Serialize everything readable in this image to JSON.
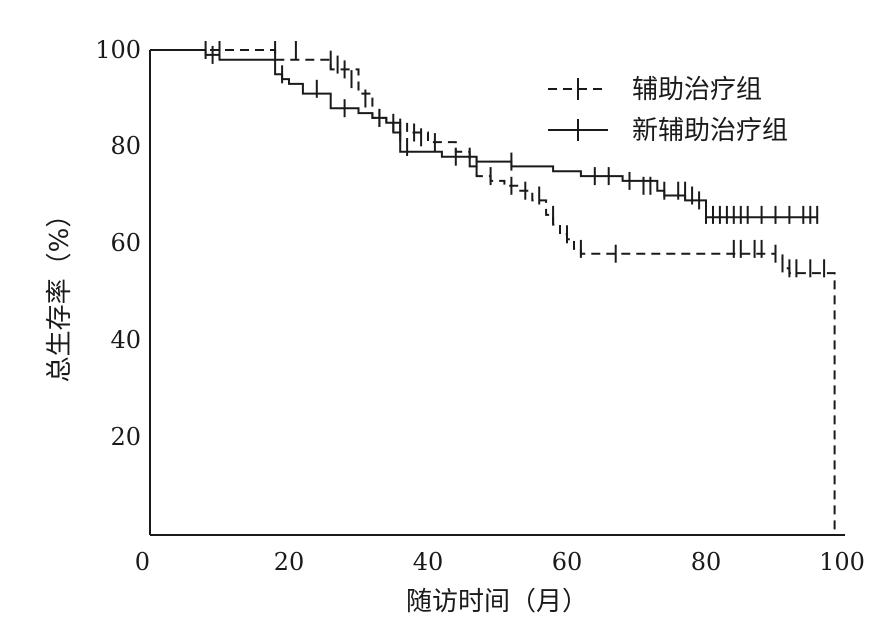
{
  "chart_data": {
    "type": "line",
    "step": true,
    "title": "",
    "xlabel": "随访时间（月）",
    "ylabel": "总生存率（%）",
    "xlim": [
      0,
      100
    ],
    "ylim": [
      0,
      100
    ],
    "xticks": [
      "0",
      "20",
      "40",
      "60",
      "80",
      "100"
    ],
    "yticks": [
      "20",
      "40",
      "60",
      "80",
      "100"
    ],
    "grid": false,
    "legend_position": "top-right",
    "series": [
      {
        "name": "辅助治疗组",
        "style": "dashed",
        "color": "#1a1a1a",
        "steps": [
          [
            0,
            100
          ],
          [
            18,
            98
          ],
          [
            26,
            96
          ],
          [
            30,
            91
          ],
          [
            32,
            86
          ],
          [
            34,
            85
          ],
          [
            37,
            83
          ],
          [
            40,
            81
          ],
          [
            44,
            79
          ],
          [
            46,
            76
          ],
          [
            47,
            74
          ],
          [
            49,
            73
          ],
          [
            51,
            72
          ],
          [
            53,
            71
          ],
          [
            55,
            69
          ],
          [
            57,
            66
          ],
          [
            58,
            64
          ],
          [
            59,
            62
          ],
          [
            60,
            61
          ],
          [
            61,
            59
          ],
          [
            62,
            58
          ],
          [
            84,
            58
          ],
          [
            90,
            57
          ],
          [
            91,
            55
          ],
          [
            92,
            54
          ],
          [
            98,
            54
          ],
          [
            98.5,
            0
          ]
        ],
        "censors": [
          [
            8,
            100
          ],
          [
            10,
            100
          ],
          [
            18,
            100
          ],
          [
            21,
            100
          ],
          [
            26,
            98
          ],
          [
            27,
            97
          ],
          [
            28,
            96
          ],
          [
            29,
            94
          ],
          [
            31,
            90
          ],
          [
            33,
            86
          ],
          [
            35,
            85
          ],
          [
            36,
            84
          ],
          [
            38,
            83
          ],
          [
            39,
            82
          ],
          [
            41,
            81
          ],
          [
            47,
            76
          ],
          [
            49,
            74
          ],
          [
            52,
            72
          ],
          [
            54,
            71
          ],
          [
            56,
            70
          ],
          [
            58,
            66
          ],
          [
            60,
            62
          ],
          [
            62,
            59
          ],
          [
            67,
            58
          ],
          [
            84,
            59
          ],
          [
            85,
            59
          ],
          [
            87,
            59
          ],
          [
            88,
            59
          ],
          [
            90,
            58
          ],
          [
            91,
            56
          ],
          [
            92,
            55
          ],
          [
            93,
            55
          ],
          [
            95,
            55
          ],
          [
            97,
            55
          ]
        ]
      },
      {
        "name": "新辅助治疗组",
        "style": "solid",
        "color": "#1a1a1a",
        "steps": [
          [
            0,
            100
          ],
          [
            8,
            99
          ],
          [
            10,
            98
          ],
          [
            18,
            95
          ],
          [
            19,
            94
          ],
          [
            20,
            93
          ],
          [
            22,
            91
          ],
          [
            26,
            88
          ],
          [
            30,
            87
          ],
          [
            32,
            86
          ],
          [
            34,
            85
          ],
          [
            35,
            83
          ],
          [
            36,
            79
          ],
          [
            42,
            78
          ],
          [
            47,
            77
          ],
          [
            52,
            76
          ],
          [
            58,
            75
          ],
          [
            62,
            74
          ],
          [
            68,
            73
          ],
          [
            73,
            71
          ],
          [
            74,
            70
          ],
          [
            77,
            69
          ],
          [
            80,
            65.5
          ],
          [
            96,
            65.5
          ]
        ],
        "censors": [
          [
            9,
            99
          ],
          [
            19,
            95
          ],
          [
            24,
            92
          ],
          [
            28,
            88
          ],
          [
            33,
            86
          ],
          [
            36,
            83
          ],
          [
            37,
            80
          ],
          [
            44,
            78
          ],
          [
            46,
            78
          ],
          [
            52,
            77
          ],
          [
            64,
            74
          ],
          [
            66,
            74
          ],
          [
            69,
            73
          ],
          [
            71,
            72
          ],
          [
            72,
            72
          ],
          [
            74,
            71
          ],
          [
            76,
            71
          ],
          [
            77,
            71
          ],
          [
            78,
            70
          ],
          [
            79,
            69
          ],
          [
            80,
            66
          ],
          [
            81,
            66
          ],
          [
            82,
            66
          ],
          [
            83,
            66
          ],
          [
            84,
            66
          ],
          [
            85,
            66
          ],
          [
            86,
            66
          ],
          [
            88,
            66
          ],
          [
            90,
            66
          ],
          [
            92,
            66
          ],
          [
            94,
            66
          ],
          [
            95,
            66
          ],
          [
            96,
            66
          ]
        ]
      }
    ]
  }
}
